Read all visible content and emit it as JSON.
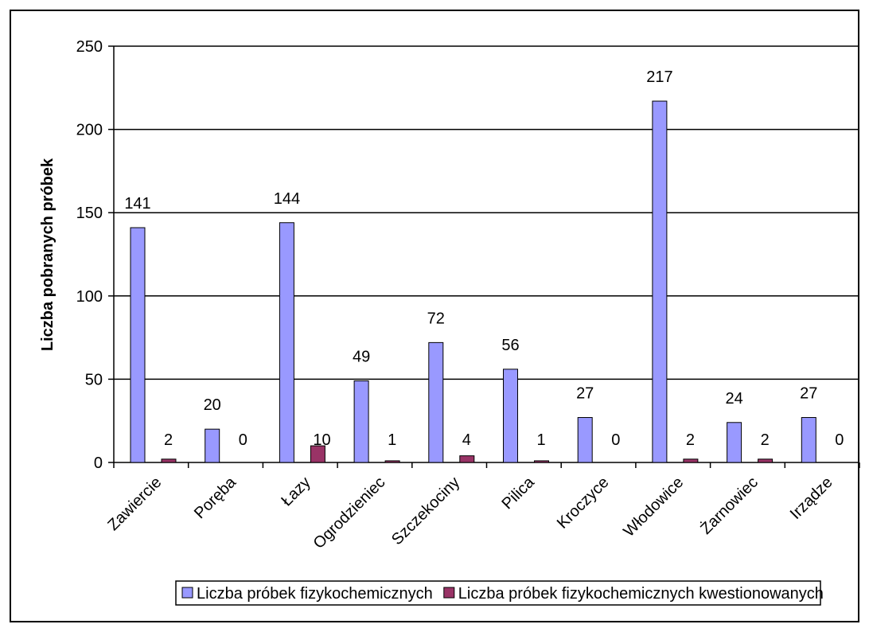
{
  "chart_data": {
    "type": "bar",
    "title": "",
    "xlabel": "",
    "ylabel": "Liczba pobranych próbek",
    "ylim": [
      0,
      250
    ],
    "yticks": [
      0,
      50,
      100,
      150,
      200,
      250
    ],
    "grid": true,
    "legend_position": "bottom",
    "categories": [
      "Zawiercie",
      "Poręba",
      "Łazy",
      "Ogrodzieniec",
      "Szczekociny",
      "Pilica",
      "Kroczyce",
      "Włodowice",
      "Żarnowiec",
      "Irządze"
    ],
    "series": [
      {
        "name": "Liczba próbek fizykochemicznych",
        "color": "#9999ff",
        "values": [
          141,
          20,
          144,
          49,
          72,
          56,
          27,
          217,
          24,
          27
        ]
      },
      {
        "name": "Liczba próbek fizykochemicznych kwestionowanych",
        "color": "#993366",
        "values": [
          2,
          0,
          10,
          1,
          4,
          1,
          0,
          2,
          2,
          0
        ]
      }
    ]
  }
}
